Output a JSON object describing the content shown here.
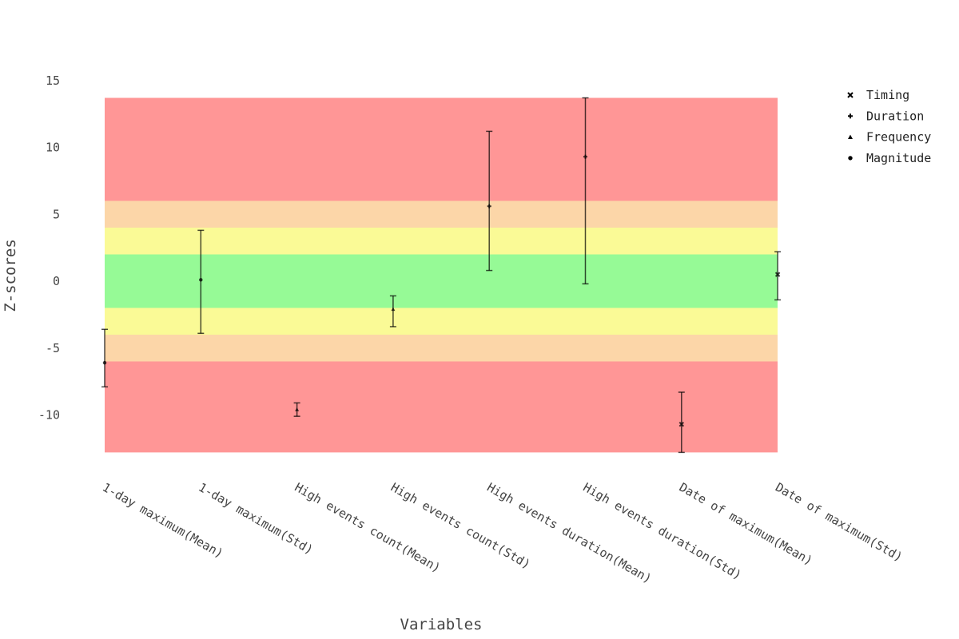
{
  "chart_data": {
    "type": "scatter",
    "xlabel": "Variables",
    "ylabel": "Z-scores",
    "ylim": [
      -15,
      17
    ],
    "yticks": [
      15,
      10,
      5,
      0,
      -5,
      -10
    ],
    "grid": false,
    "legend_position": "top-right",
    "categories": [
      "1-day maximum(Mean)",
      "1-day maximum(Std)",
      "High events count(Mean)",
      "High events count(Std)",
      "High events duration(Mean)",
      "High events duration(Std)",
      "Date of maximum(Mean)",
      "Date of maximum(Std)"
    ],
    "bands": [
      {
        "y0": 6,
        "y1": 13.7,
        "color": "#ff9696"
      },
      {
        "y0": 4,
        "y1": 6,
        "color": "#fcd6a8"
      },
      {
        "y0": 2,
        "y1": 4,
        "color": "#fafa96"
      },
      {
        "y0": -2,
        "y1": 2,
        "color": "#96fa96"
      },
      {
        "y0": -4,
        "y1": -2,
        "color": "#fafa96"
      },
      {
        "y0": -6,
        "y1": -4,
        "color": "#fcd6a8"
      },
      {
        "y0": -12.8,
        "y1": -6,
        "color": "#ff9696"
      }
    ],
    "points": [
      {
        "category": "1-day maximum(Mean)",
        "group": "Magnitude",
        "y": -6.1,
        "low": -7.9,
        "high": -3.6
      },
      {
        "category": "1-day maximum(Std)",
        "group": "Magnitude",
        "y": 0.1,
        "low": -3.9,
        "high": 3.8
      },
      {
        "category": "High events count(Mean)",
        "group": "Frequency",
        "y": -9.6,
        "low": -10.1,
        "high": -9.1
      },
      {
        "category": "High events count(Std)",
        "group": "Frequency",
        "y": -2.1,
        "low": -3.4,
        "high": -1.1
      },
      {
        "category": "High events duration(Mean)",
        "group": "Duration",
        "y": 5.6,
        "low": 0.8,
        "high": 11.2
      },
      {
        "category": "High events duration(Std)",
        "group": "Duration",
        "y": 9.3,
        "low": -0.2,
        "high": 13.7
      },
      {
        "category": "Date of maximum(Mean)",
        "group": "Timing",
        "y": -10.7,
        "low": -12.8,
        "high": -8.3
      },
      {
        "category": "Date of maximum(Std)",
        "group": "Timing",
        "y": 0.5,
        "low": -1.4,
        "high": 2.2
      }
    ],
    "legend": [
      {
        "name": "Timing",
        "marker": "x"
      },
      {
        "name": "Duration",
        "marker": "plus"
      },
      {
        "name": "Frequency",
        "marker": "triangle"
      },
      {
        "name": "Magnitude",
        "marker": "circle"
      }
    ],
    "colors": {
      "marker": "#000000",
      "tick_text": "#444444"
    }
  }
}
